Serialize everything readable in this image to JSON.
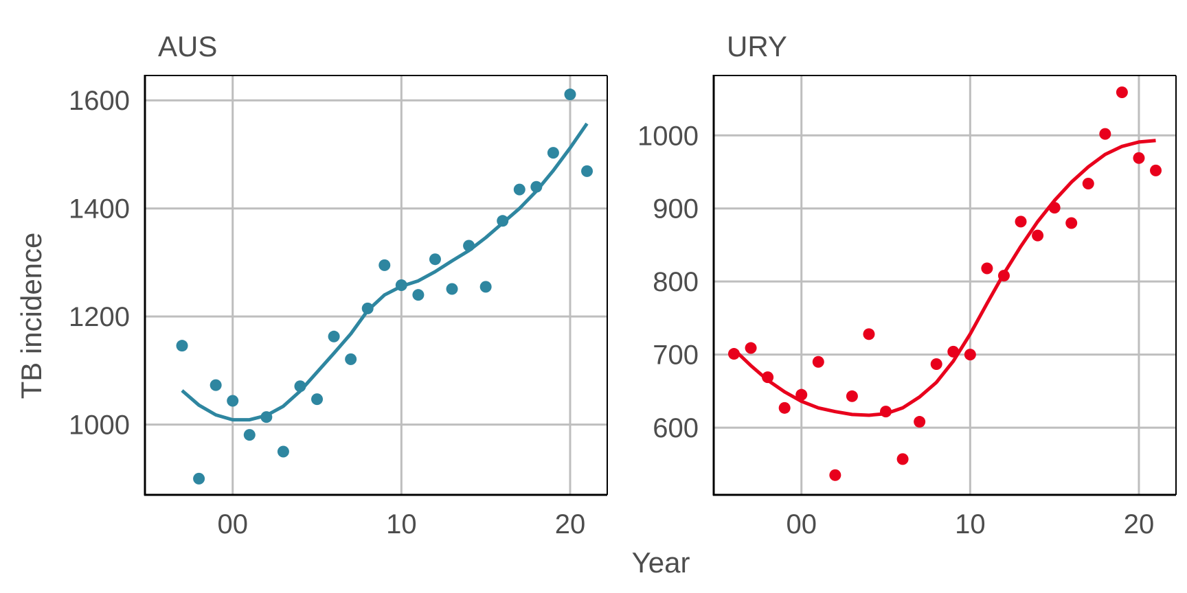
{
  "chart_data": {
    "type": "scatter",
    "xlabel": "Year",
    "ylabel": "TB incidence",
    "panels": [
      {
        "title": "AUS",
        "color": "#2E86A0",
        "x_ticks": [
          {
            "value": 2000,
            "label": "00"
          },
          {
            "value": 2010,
            "label": "10"
          },
          {
            "value": 2020,
            "label": "20"
          }
        ],
        "y_ticks": [
          1000,
          1200,
          1400,
          1600
        ],
        "xlim": [
          1994.8,
          2022.2
        ],
        "ylim": [
          870,
          1646
        ],
        "points": {
          "x": [
            1997,
            1998,
            1999,
            2000,
            2001,
            2002,
            2003,
            2004,
            2005,
            2006,
            2007,
            2008,
            2009,
            2010,
            2011,
            2012,
            2013,
            2014,
            2015,
            2016,
            2017,
            2018,
            2019,
            2020,
            2021
          ],
          "y": [
            1146,
            900,
            1073,
            1044,
            981,
            1014,
            950,
            1071,
            1047,
            1163,
            1121,
            1215,
            1295,
            1258,
            1240,
            1306,
            1251,
            1331,
            1255,
            1377,
            1435,
            1440,
            1503,
            1611,
            1469
          ]
        },
        "smooth": {
          "x": [
            1997,
            1998,
            1999,
            2000,
            2001,
            2002,
            2003,
            2004,
            2005,
            2006,
            2007,
            2008,
            2009,
            2010,
            2011,
            2012,
            2013,
            2014,
            2015,
            2016,
            2017,
            2018,
            2019,
            2020,
            2021
          ],
          "y": [
            1063,
            1036,
            1018,
            1009,
            1009,
            1017,
            1034,
            1062,
            1097,
            1132,
            1168,
            1211,
            1240,
            1256,
            1266,
            1283,
            1303,
            1322,
            1346,
            1373,
            1400,
            1432,
            1470,
            1512,
            1557
          ]
        }
      },
      {
        "title": "URY",
        "color": "#E8001C",
        "x_ticks": [
          {
            "value": 2000,
            "label": "00"
          },
          {
            "value": 2010,
            "label": "10"
          },
          {
            "value": 2020,
            "label": "20"
          }
        ],
        "y_ticks": [
          600,
          700,
          800,
          900,
          1000
        ],
        "xlim": [
          1994.8,
          2022.2
        ],
        "ylim": [
          508,
          1082
        ],
        "points": {
          "x": [
            1996,
            1997,
            1998,
            1999,
            2000,
            2001,
            2002,
            2003,
            2004,
            2005,
            2006,
            2007,
            2008,
            2009,
            2010,
            2011,
            2012,
            2013,
            2014,
            2015,
            2016,
            2017,
            2018,
            2019,
            2020,
            2021
          ],
          "y": [
            701,
            709,
            669,
            627,
            645,
            690,
            535,
            643,
            728,
            622,
            557,
            608,
            687,
            704,
            700,
            818,
            808,
            882,
            863,
            901,
            880,
            934,
            1002,
            1059,
            969,
            952
          ]
        },
        "smooth": {
          "x": [
            1996,
            1997,
            1998,
            1999,
            2000,
            2001,
            2002,
            2003,
            2004,
            2005,
            2006,
            2007,
            2008,
            2009,
            2010,
            2011,
            2012,
            2013,
            2014,
            2015,
            2016,
            2017,
            2018,
            2019,
            2020,
            2021
          ],
          "y": [
            707,
            685,
            665,
            649,
            636,
            627,
            622,
            618,
            617,
            619,
            627,
            642,
            662,
            691,
            728,
            770,
            811,
            848,
            882,
            911,
            936,
            957,
            974,
            985,
            991,
            993
          ]
        }
      }
    ]
  }
}
